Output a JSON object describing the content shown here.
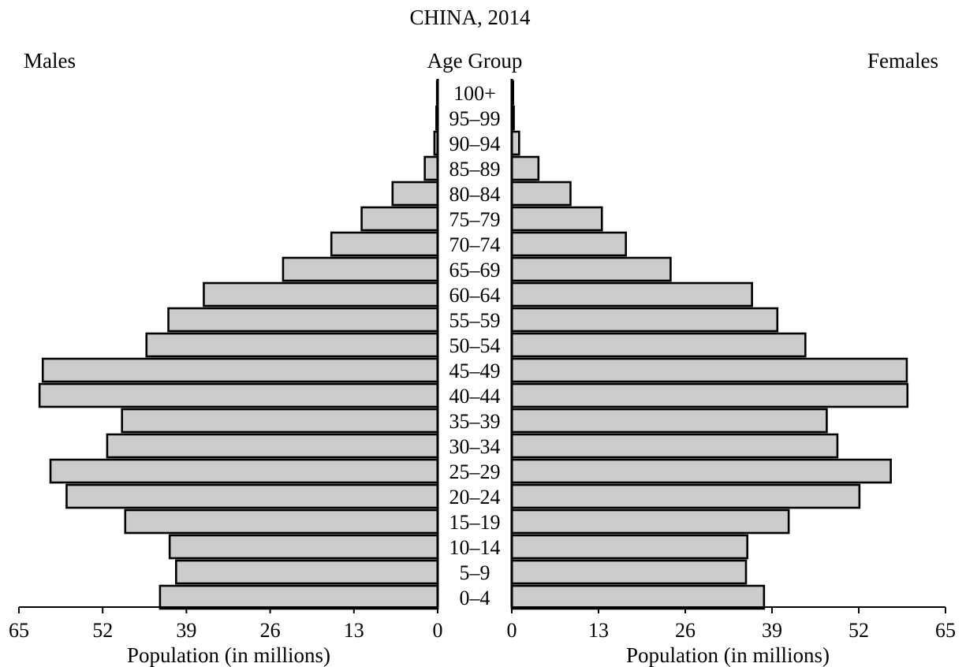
{
  "chart_data": {
    "type": "bar",
    "orientation": "horizontal-population-pyramid",
    "title": "CHINA, 2014",
    "left_label": "Males",
    "center_label": "Age Group",
    "right_label": "Females",
    "xlabel_left": "Population (in millions)",
    "xlabel_right": "Population (in millions)",
    "xlim": [
      0,
      65
    ],
    "ticks": [
      0,
      13,
      26,
      39,
      52,
      65
    ],
    "categories": [
      "100+",
      "95–99",
      "90–94",
      "85–89",
      "80–84",
      "75–79",
      "70–74",
      "65–69",
      "60–64",
      "55–59",
      "50–54",
      "45–49",
      "40–44",
      "35–39",
      "30–34",
      "25–29",
      "20–24",
      "15–19",
      "10–14",
      "5–9",
      "0–4"
    ],
    "series": [
      {
        "name": "Males",
        "side": "left",
        "values": [
          0.1,
          0.2,
          0.5,
          2.0,
          7.0,
          11.8,
          16.5,
          24.0,
          36.3,
          41.8,
          45.2,
          61.3,
          61.8,
          49.0,
          51.3,
          60.1,
          57.6,
          48.5,
          41.6,
          40.6,
          43.1
        ]
      },
      {
        "name": "Females",
        "side": "right",
        "values": [
          0.2,
          0.3,
          1.1,
          4.0,
          8.8,
          13.5,
          17.1,
          23.8,
          36.0,
          39.8,
          44.0,
          59.2,
          59.3,
          47.2,
          48.8,
          56.8,
          52.1,
          41.5,
          35.3,
          35.1,
          37.8
        ]
      }
    ],
    "bar_fill": "#cccccc",
    "bar_stroke": "#000000"
  }
}
